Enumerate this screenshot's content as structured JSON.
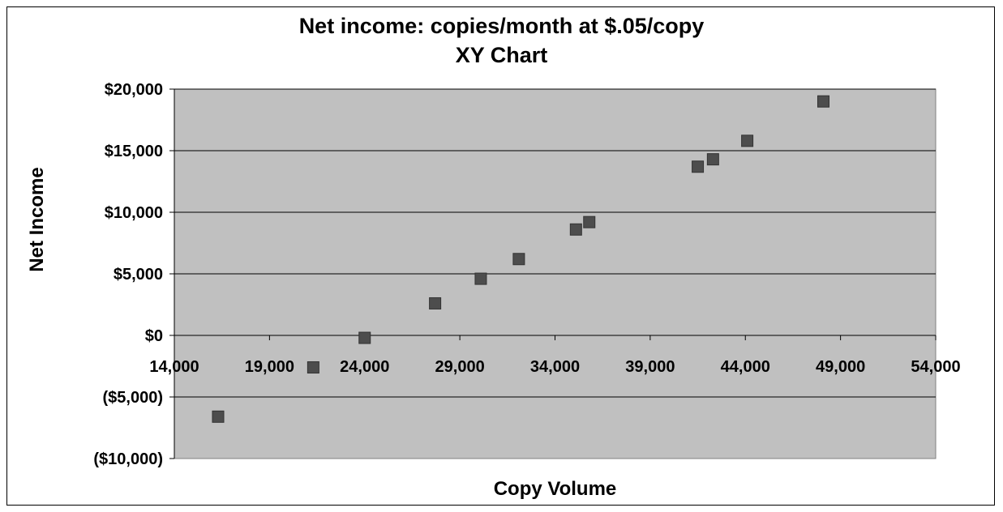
{
  "chart_data": {
    "type": "scatter",
    "title": "Net income: copies/month at $.05/copy",
    "subtitle": "XY Chart",
    "xlabel": "Copy Volume",
    "ylabel": "Net Income",
    "xlim": [
      14000,
      54000
    ],
    "ylim": [
      -10000,
      20000
    ],
    "x_ticks": [
      14000,
      19000,
      24000,
      29000,
      34000,
      39000,
      44000,
      49000,
      54000
    ],
    "x_tick_labels": [
      "14,000",
      "19,000",
      "24,000",
      "29,000",
      "34,000",
      "39,000",
      "44,000",
      "49,000",
      "54,000"
    ],
    "y_ticks": [
      -10000,
      -5000,
      0,
      5000,
      10000,
      15000,
      20000
    ],
    "y_tick_labels": [
      "($10,000)",
      "($5,000)",
      "$0",
      "$5,000",
      "$10,000",
      "$15,000",
      "$20,000"
    ],
    "grid": "horizontal major gridlines",
    "legend": "none",
    "marker": "square",
    "colors": {
      "plot_background": "#c0c0c0",
      "marker": "#4d4d4d",
      "gridline": "#000000"
    },
    "points": [
      {
        "x": 16300,
        "y": -6600
      },
      {
        "x": 21300,
        "y": -2600
      },
      {
        "x": 24000,
        "y": -200
      },
      {
        "x": 27700,
        "y": 2600
      },
      {
        "x": 30100,
        "y": 4600
      },
      {
        "x": 32100,
        "y": 6200
      },
      {
        "x": 35100,
        "y": 8600
      },
      {
        "x": 35800,
        "y": 9200
      },
      {
        "x": 41500,
        "y": 13700
      },
      {
        "x": 42300,
        "y": 14300
      },
      {
        "x": 44100,
        "y": 15800
      },
      {
        "x": 48100,
        "y": 19000
      }
    ]
  }
}
